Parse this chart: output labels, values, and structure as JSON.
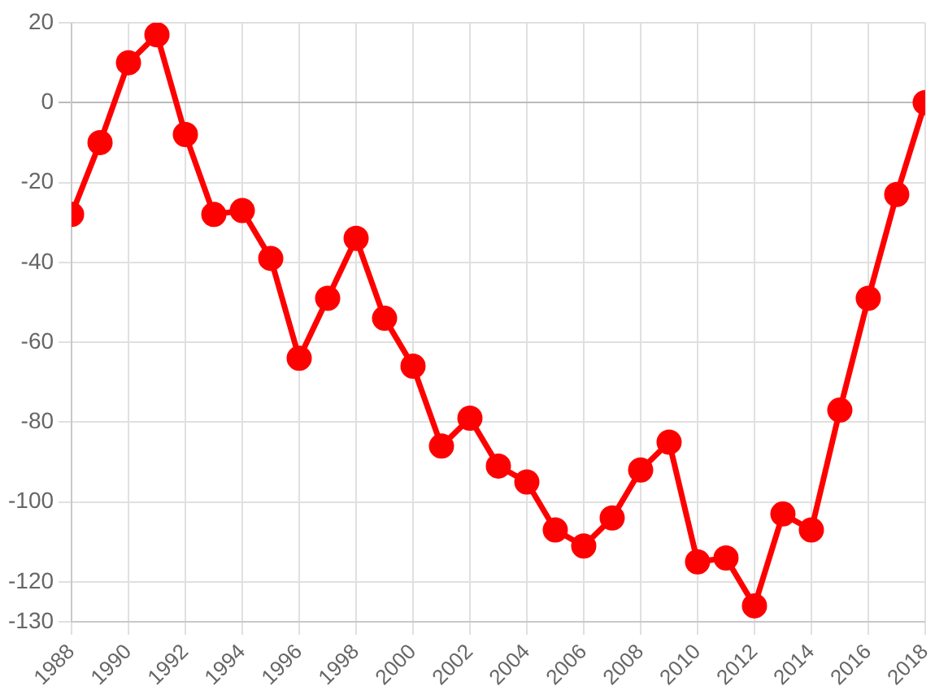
{
  "chart_data": {
    "type": "line",
    "x": [
      1988,
      1989,
      1990,
      1991,
      1992,
      1993,
      1994,
      1995,
      1996,
      1997,
      1998,
      1999,
      2000,
      2001,
      2002,
      2003,
      2004,
      2005,
      2006,
      2007,
      2008,
      2009,
      2010,
      2011,
      2012,
      2013,
      2014,
      2015,
      2016,
      2017,
      2018
    ],
    "series": [
      {
        "color": "#ff0000",
        "values": [
          -28,
          -10,
          10,
          17,
          -8,
          -28,
          -27,
          -39,
          -64,
          -49,
          -34,
          -54,
          -66,
          -86,
          -79,
          -91,
          -95,
          -107,
          -111,
          -104,
          -92,
          -85,
          -115,
          -114,
          -126,
          -103,
          -107,
          -77,
          -49,
          -23,
          0
        ]
      }
    ],
    "xlim": [
      1988,
      2018
    ],
    "xticks": [
      1988,
      1990,
      1992,
      1994,
      1996,
      1998,
      2000,
      2002,
      2004,
      2006,
      2008,
      2010,
      2012,
      2014,
      2016,
      2018
    ],
    "ylim": [
      -130,
      20
    ],
    "yticks": [
      20,
      0,
      -20,
      -40,
      -60,
      -80,
      -100,
      -120,
      -130
    ],
    "grid": true,
    "legend": false,
    "marker": "circle",
    "line_style": "solid"
  }
}
